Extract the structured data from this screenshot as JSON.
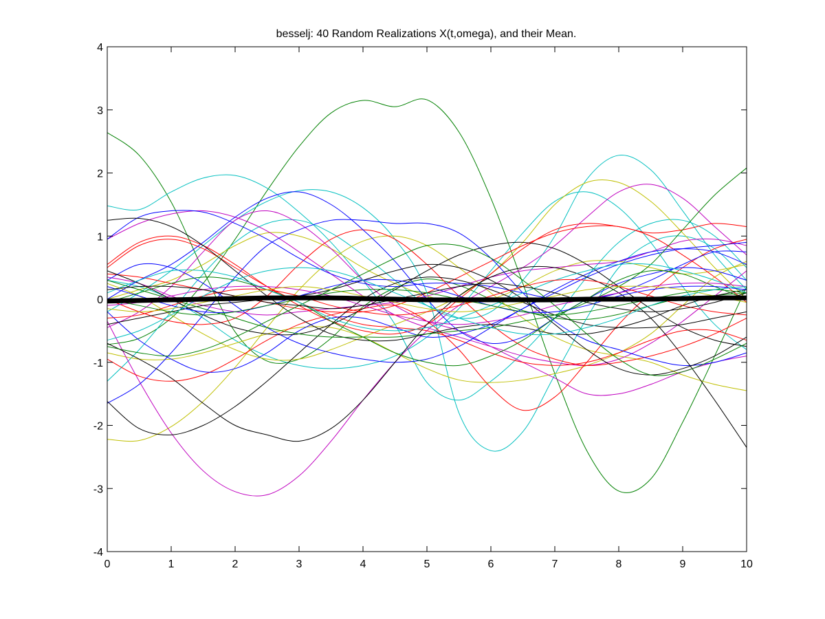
{
  "chart_data": {
    "type": "line",
    "title": "besselj: 40 Random Realizations X(t,omega), and their Mean.",
    "xlabel": "",
    "ylabel": "",
    "xlim": [
      0,
      10
    ],
    "ylim": [
      -4,
      4
    ],
    "x_ticks": [
      "0",
      "1",
      "2",
      "3",
      "4",
      "5",
      "6",
      "7",
      "8",
      "9",
      "10"
    ],
    "y_ticks": [
      "-4",
      "-3",
      "-2",
      "-1",
      "0",
      "1",
      "2",
      "3",
      "4"
    ],
    "grid": false,
    "legend": "none",
    "x": [
      0,
      0.5,
      1,
      1.5,
      2,
      2.5,
      3,
      3.5,
      4,
      4.5,
      5,
      5.5,
      6,
      6.5,
      7,
      7.5,
      8,
      8.5,
      9,
      9.5,
      10
    ],
    "series": [
      {
        "color": "#008000",
        "values": [
          2.64,
          2.28,
          1.54,
          0.46,
          -0.52,
          -0.98,
          -0.95,
          -0.62,
          -0.12,
          0.18,
          0.32,
          0.22,
          0.0,
          -0.18,
          -0.3,
          -0.32,
          -0.24,
          -0.1,
          0.02,
          0.06,
          0.1
        ]
      },
      {
        "color": "#008000",
        "values": [
          -0.72,
          -0.62,
          -0.3,
          0.25,
          0.95,
          1.72,
          2.42,
          2.95,
          3.15,
          3.05,
          3.16,
          2.65,
          1.6,
          0.25,
          -1.18,
          -2.4,
          -3.04,
          -2.85,
          -1.95,
          -0.9,
          0.2
        ]
      },
      {
        "color": "#00bfbf",
        "values": [
          1.48,
          1.42,
          1.7,
          1.92,
          1.96,
          1.76,
          1.38,
          0.9,
          0.3,
          -0.4,
          -1.32,
          -1.6,
          -1.3,
          -0.85,
          -0.3,
          0.35,
          0.9,
          1.2,
          1.25,
          1.0,
          0.5
        ]
      },
      {
        "color": "#00bfbf",
        "values": [
          -0.2,
          0.1,
          0.45,
          0.85,
          1.25,
          1.55,
          1.72,
          1.7,
          1.45,
          0.95,
          0.1,
          -1.8,
          -2.4,
          -2.1,
          -1.2,
          -0.3,
          0.5,
          0.9,
          1.0,
          0.8,
          0.3
        ]
      },
      {
        "color": "#00bfbf",
        "values": [
          -1.3,
          -0.8,
          -0.2,
          0.4,
          0.9,
          1.2,
          1.25,
          1.05,
          0.7,
          0.3,
          -0.1,
          -0.3,
          -0.2,
          0.3,
          1.0,
          1.9,
          2.28,
          2.05,
          1.4,
          0.7,
          0.15
        ]
      },
      {
        "color": "#00bfbf",
        "values": [
          0.3,
          0.2,
          0.0,
          -0.3,
          -0.65,
          -0.9,
          -1.05,
          -1.1,
          -1.05,
          -0.9,
          -0.6,
          -0.15,
          0.45,
          1.05,
          1.55,
          1.7,
          1.45,
          0.9,
          0.2,
          -0.4,
          -0.8
        ]
      },
      {
        "color": "#bfbf00",
        "values": [
          -2.22,
          -2.24,
          -2.02,
          -1.62,
          -1.08,
          -0.45,
          0.15,
          0.62,
          0.92,
          1.0,
          0.85,
          0.5,
          0.1,
          -0.3,
          -0.6,
          -0.8,
          -0.9,
          -1.0,
          -1.2,
          -1.35,
          -1.45
        ]
      },
      {
        "color": "#bfbf00",
        "values": [
          0.25,
          0.05,
          -0.25,
          -0.55,
          -0.8,
          -0.95,
          -0.95,
          -0.8,
          -0.6,
          -0.4,
          -0.2,
          0.05,
          0.4,
          0.9,
          1.5,
          1.85,
          1.85,
          1.55,
          1.05,
          0.5,
          0.0
        ]
      },
      {
        "color": "#bfbf00",
        "values": [
          -0.85,
          -0.95,
          -0.95,
          -0.85,
          -0.7,
          -0.55,
          -0.45,
          -0.45,
          -0.6,
          -0.85,
          -1.1,
          -1.28,
          -1.32,
          -1.28,
          -1.18,
          -1.05,
          -0.85,
          -0.55,
          -0.1,
          0.35,
          0.6
        ]
      },
      {
        "color": "#bfbf00",
        "values": [
          0.0,
          0.15,
          0.3,
          0.55,
          0.85,
          1.05,
          1.0,
          0.8,
          0.5,
          0.25,
          0.05,
          -0.05,
          0.0,
          0.2,
          0.45,
          0.6,
          0.6,
          0.5,
          0.4,
          0.45,
          0.55
        ]
      },
      {
        "color": "#bf00bf",
        "values": [
          -0.35,
          -1.3,
          -2.12,
          -2.72,
          -3.05,
          -3.1,
          -2.8,
          -2.25,
          -1.6,
          -1.0,
          -0.5,
          -0.1,
          0.2,
          0.5,
          0.85,
          1.3,
          1.7,
          1.82,
          1.6,
          1.15,
          0.7
        ]
      },
      {
        "color": "#bf00bf",
        "values": [
          0.95,
          1.2,
          1.35,
          1.4,
          1.3,
          1.08,
          0.75,
          0.4,
          0.05,
          -0.25,
          -0.45,
          -0.6,
          -0.75,
          -0.9,
          -1.0,
          -1.05,
          -0.95,
          -0.7,
          -0.35,
          0.05,
          0.45
        ]
      },
      {
        "color": "#bf00bf",
        "values": [
          -0.45,
          -0.2,
          0.2,
          0.75,
          1.25,
          1.4,
          1.2,
          0.8,
          0.3,
          -0.1,
          -0.35,
          -0.5,
          -0.75,
          -1.0,
          -1.25,
          -1.5,
          -1.5,
          -1.35,
          -1.15,
          -1.0,
          -0.9
        ]
      },
      {
        "color": "#bf00bf",
        "values": [
          0.35,
          0.25,
          0.05,
          -0.1,
          -0.2,
          -0.25,
          -0.2,
          -0.15,
          -0.1,
          -0.05,
          0.05,
          0.2,
          0.35,
          0.45,
          0.5,
          0.55,
          0.6,
          0.75,
          0.92,
          0.95,
          0.85
        ]
      },
      {
        "color": "#ff0000",
        "values": [
          0.5,
          0.85,
          0.95,
          0.8,
          0.5,
          0.2,
          -0.05,
          -0.25,
          -0.4,
          -0.45,
          -0.5,
          -0.65,
          -0.85,
          -1.0,
          -1.05,
          -1.0,
          -0.85,
          -0.65,
          -0.5,
          -0.5,
          -0.65
        ]
      },
      {
        "color": "#ff0000",
        "values": [
          -0.95,
          -1.22,
          -1.3,
          -1.2,
          -0.95,
          -0.65,
          -0.4,
          -0.25,
          -0.15,
          -0.1,
          -0.35,
          -0.8,
          -1.4,
          -1.76,
          -1.55,
          -1.0,
          -0.4,
          0.1,
          0.5,
          0.8,
          0.95
        ]
      },
      {
        "color": "#ff0000",
        "values": [
          0.55,
          0.9,
          1.0,
          0.85,
          0.55,
          0.2,
          -0.1,
          -0.35,
          -0.5,
          -0.55,
          -0.4,
          0.0,
          0.4,
          0.8,
          1.1,
          1.2,
          1.15,
          1.05,
          1.1,
          1.2,
          1.15
        ]
      },
      {
        "color": "#ff0000",
        "values": [
          0.0,
          -0.2,
          -0.35,
          -0.4,
          -0.3,
          0.05,
          0.55,
          0.95,
          1.1,
          0.95,
          0.55,
          0.05,
          -0.4,
          -0.75,
          -0.95,
          -1.05,
          -1.0,
          -0.9,
          -0.75,
          -0.55,
          -0.3
        ]
      },
      {
        "color": "#ff0000",
        "values": [
          0.4,
          0.35,
          0.25,
          0.15,
          0.05,
          -0.05,
          -0.15,
          -0.2,
          -0.2,
          -0.1,
          0.1,
          0.35,
          0.6,
          0.85,
          1.05,
          1.15,
          1.15,
          1.0,
          0.7,
          0.35,
          -0.05
        ]
      },
      {
        "color": "#0000ff",
        "values": [
          0.95,
          1.3,
          1.4,
          1.38,
          1.2,
          0.95,
          0.65,
          0.4,
          0.25,
          0.2,
          0.25,
          0.25,
          0.2,
          0.1,
          0.0,
          0.0,
          0.1,
          0.3,
          0.55,
          0.75,
          0.75
        ]
      },
      {
        "color": "#0000ff",
        "values": [
          0.0,
          0.3,
          0.55,
          0.9,
          1.3,
          1.6,
          1.7,
          1.5,
          1.1,
          0.6,
          0.0,
          -0.5,
          -0.7,
          -0.6,
          -0.3,
          0.0,
          0.25,
          0.4,
          0.5,
          0.45,
          0.3
        ]
      },
      {
        "color": "#0000ff",
        "values": [
          -1.65,
          -1.35,
          -0.85,
          -0.25,
          0.35,
          0.85,
          1.1,
          1.25,
          1.25,
          1.2,
          1.2,
          1.05,
          0.65,
          0.1,
          -0.35,
          -0.65,
          -0.8,
          -0.95,
          -1.05,
          -1.0,
          -0.85
        ]
      },
      {
        "color": "#0000ff",
        "values": [
          0.3,
          0.55,
          0.5,
          0.25,
          -0.1,
          -0.45,
          -0.7,
          -0.85,
          -0.95,
          -1.0,
          -0.95,
          -0.75,
          -0.45,
          -0.15,
          0.1,
          0.35,
          0.55,
          0.7,
          0.8,
          0.85,
          0.9
        ]
      },
      {
        "color": "#0000ff",
        "values": [
          -0.2,
          -0.65,
          -0.95,
          -1.15,
          -1.1,
          -0.85,
          -0.5,
          -0.3,
          -0.3,
          -0.45,
          -0.6,
          -0.55,
          -0.4,
          -0.15,
          0.15,
          0.4,
          0.6,
          0.75,
          0.8,
          0.75,
          0.55
        ]
      },
      {
        "color": "#000000",
        "values": [
          1.25,
          1.28,
          1.15,
          0.85,
          0.45,
          0.05,
          -0.3,
          -0.55,
          -0.65,
          -0.65,
          -0.55,
          -0.45,
          -0.4,
          -0.45,
          -0.55,
          -0.55,
          -0.45,
          -0.3,
          -0.1,
          0.05,
          0.15
        ]
      },
      {
        "color": "#000000",
        "values": [
          -1.62,
          -2.05,
          -2.15,
          -2.0,
          -1.7,
          -1.3,
          -0.85,
          -0.4,
          0.0,
          0.25,
          0.35,
          0.3,
          0.15,
          -0.05,
          -0.25,
          -0.4,
          -0.45,
          -0.45,
          -0.4,
          -0.3,
          -0.2
        ]
      },
      {
        "color": "#000000",
        "values": [
          -0.7,
          -0.95,
          -1.25,
          -1.65,
          -2.0,
          -2.15,
          -2.25,
          -2.05,
          -1.6,
          -1.0,
          -0.4,
          0.05,
          0.35,
          0.5,
          0.5,
          0.35,
          0.1,
          -0.3,
          -0.9,
          -1.6,
          -2.35
        ]
      },
      {
        "color": "#000000",
        "values": [
          0.45,
          0.25,
          0.0,
          -0.25,
          -0.45,
          -0.55,
          -0.55,
          -0.4,
          -0.15,
          0.15,
          0.45,
          0.7,
          0.85,
          0.9,
          0.8,
          0.55,
          0.2,
          -0.15,
          -0.45,
          -0.65,
          -0.75
        ]
      },
      {
        "color": "#000000",
        "values": [
          -0.4,
          -0.3,
          -0.2,
          -0.1,
          -0.05,
          0.0,
          0.05,
          0.15,
          0.3,
          0.45,
          0.55,
          0.5,
          0.3,
          0.0,
          -0.4,
          -0.8,
          -1.1,
          -1.2,
          -1.1,
          -0.9,
          -0.6
        ]
      },
      {
        "color": "#008000",
        "values": [
          -0.75,
          -0.85,
          -0.9,
          -0.8,
          -0.6,
          -0.35,
          -0.1,
          0.15,
          0.4,
          0.65,
          0.85,
          0.85,
          0.65,
          0.3,
          -0.1,
          -0.55,
          -0.95,
          -1.2,
          -1.15,
          -0.95,
          -0.7
        ]
      },
      {
        "color": "#008000",
        "values": [
          0.3,
          0.15,
          0.0,
          -0.15,
          -0.3,
          -0.45,
          -0.55,
          -0.6,
          -0.6,
          -0.6,
          -0.55,
          -0.5,
          -0.45,
          -0.35,
          -0.25,
          -0.05,
          0.2,
          0.55,
          1.1,
          1.65,
          2.08
        ]
      },
      {
        "color": "#008000",
        "values": [
          -0.05,
          0.1,
          0.25,
          0.35,
          0.3,
          0.15,
          -0.05,
          -0.35,
          -0.6,
          -0.85,
          -1.0,
          -1.05,
          -0.9,
          -0.65,
          -0.3,
          0.0,
          0.3,
          0.45,
          0.4,
          0.2,
          0.0
        ]
      },
      {
        "color": "#00bfbf",
        "values": [
          0.1,
          0.3,
          0.45,
          0.45,
          0.35,
          0.15,
          -0.05,
          -0.3,
          -0.45,
          -0.5,
          -0.45,
          -0.3,
          -0.1,
          0.1,
          0.3,
          0.45,
          0.55,
          0.55,
          0.45,
          0.3,
          0.1
        ]
      },
      {
        "color": "#bf00bf",
        "values": [
          -0.1,
          -0.05,
          0.05,
          0.15,
          0.2,
          0.2,
          0.15,
          0.05,
          -0.1,
          -0.25,
          -0.35,
          -0.4,
          -0.35,
          -0.25,
          -0.1,
          0.0,
          0.1,
          0.2,
          0.25,
          0.25,
          0.2
        ]
      },
      {
        "color": "#ff0000",
        "values": [
          -0.3,
          -0.25,
          -0.1,
          0.05,
          0.15,
          0.15,
          0.05,
          -0.1,
          -0.2,
          -0.25,
          -0.2,
          -0.1,
          0.05,
          0.2,
          0.3,
          0.3,
          0.2,
          0.05,
          -0.1,
          -0.2,
          -0.25
        ]
      },
      {
        "color": "#0000ff",
        "values": [
          0.2,
          0.05,
          -0.1,
          -0.2,
          -0.2,
          -0.1,
          0.05,
          0.2,
          0.3,
          0.3,
          0.2,
          0.05,
          -0.1,
          -0.2,
          -0.2,
          -0.1,
          0.05,
          0.15,
          0.2,
          0.2,
          0.15
        ]
      },
      {
        "color": "#000000",
        "values": [
          0.15,
          0.2,
          0.2,
          0.15,
          0.05,
          -0.05,
          -0.1,
          -0.15,
          -0.1,
          0.0,
          0.1,
          0.2,
          0.25,
          0.2,
          0.1,
          -0.05,
          -0.15,
          -0.2,
          -0.15,
          -0.05,
          0.1
        ]
      },
      {
        "color": "#bfbf00",
        "values": [
          -0.15,
          -0.2,
          -0.15,
          -0.05,
          0.05,
          0.15,
          0.2,
          0.15,
          0.05,
          -0.05,
          -0.15,
          -0.2,
          -0.15,
          -0.05,
          0.05,
          0.15,
          0.2,
          0.2,
          0.15,
          0.05,
          -0.05
        ]
      },
      {
        "color": "#008000",
        "values": [
          0.0,
          -0.1,
          -0.2,
          -0.25,
          -0.2,
          -0.1,
          0.0,
          0.1,
          0.15,
          0.15,
          0.1,
          0.0,
          -0.1,
          -0.2,
          -0.25,
          -0.2,
          -0.1,
          0.0,
          0.1,
          0.15,
          0.1
        ]
      },
      {
        "color": "#00bfbf",
        "values": [
          -0.65,
          -0.5,
          -0.25,
          0.05,
          0.3,
          0.45,
          0.5,
          0.45,
          0.3,
          0.1,
          -0.1,
          -0.3,
          -0.45,
          -0.55,
          -0.55,
          -0.45,
          -0.3,
          -0.1,
          0.05,
          0.15,
          0.2
        ]
      }
    ],
    "mean": {
      "color": "#000000",
      "values": [
        -0.03,
        -0.02,
        -0.01,
        0.0,
        0.01,
        0.02,
        0.02,
        0.02,
        0.01,
        0.0,
        -0.01,
        -0.01,
        -0.01,
        -0.01,
        -0.01,
        0.0,
        0.0,
        0.0,
        0.01,
        0.02,
        0.02
      ]
    }
  }
}
